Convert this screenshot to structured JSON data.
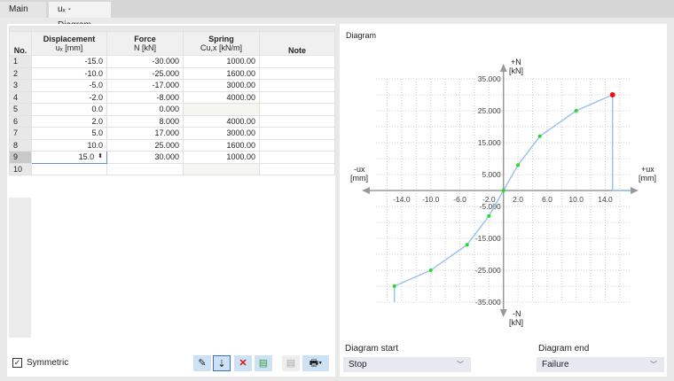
{
  "tabs": [
    {
      "label": "Main"
    },
    {
      "label": "uₓ - Diagram"
    }
  ],
  "table": {
    "headers": {
      "no": "No.",
      "disp1": "Displacement",
      "disp2": "uₓ [mm]",
      "force1": "Force",
      "force2": "N [kN]",
      "spring1": "Spring",
      "spring2": "Cu,x [kN/m]",
      "note": "Note"
    },
    "rows": [
      {
        "no": "1",
        "disp": "-15.0",
        "force": "-30.000",
        "spring": "1000.00",
        "note": ""
      },
      {
        "no": "2",
        "disp": "-10.0",
        "force": "-25.000",
        "spring": "1600.00",
        "note": ""
      },
      {
        "no": "3",
        "disp": "-5.0",
        "force": "-17.000",
        "spring": "3000.00",
        "note": ""
      },
      {
        "no": "4",
        "disp": "-2.0",
        "force": "-8.000",
        "spring": "4000.00",
        "note": ""
      },
      {
        "no": "5",
        "disp": "0.0",
        "force": "0.000",
        "spring": "",
        "note": ""
      },
      {
        "no": "6",
        "disp": "2.0",
        "force": "8.000",
        "spring": "4000.00",
        "note": ""
      },
      {
        "no": "7",
        "disp": "5.0",
        "force": "17.000",
        "spring": "3000.00",
        "note": ""
      },
      {
        "no": "8",
        "disp": "10.0",
        "force": "25.000",
        "spring": "1600.00",
        "note": ""
      },
      {
        "no": "9",
        "disp": "15.0",
        "force": "30.000",
        "spring": "1000.00",
        "note": ""
      },
      {
        "no": "10",
        "disp": "",
        "force": "",
        "spring": "",
        "note": ""
      }
    ]
  },
  "symmetric": {
    "label": "Symmetric",
    "checked": true
  },
  "toolbar": [
    {
      "icon": "edit-icon"
    },
    {
      "icon": "sort-icon"
    },
    {
      "icon": "delete-icon"
    },
    {
      "icon": "export-icon"
    },
    {
      "icon": "copy-icon"
    },
    {
      "icon": "print-icon"
    }
  ],
  "diagram": {
    "title": "Diagram",
    "pos_n": "+N",
    "neg_n": "-N",
    "unit_n": "[kN]",
    "pos_u": "+ux",
    "neg_u": "-ux",
    "unit_u": "[mm]",
    "start_label": "Diagram start",
    "start_value": "Stop",
    "end_label": "Diagram end",
    "end_value": "Failure"
  },
  "chart_data": {
    "type": "line",
    "x": [
      -15,
      -10,
      -5,
      -2,
      0,
      2,
      5,
      10,
      15
    ],
    "y": [
      -30,
      -25,
      -17,
      -8,
      0,
      8,
      17,
      25,
      30
    ],
    "xticks": [
      "-14.0",
      "-10.0",
      "-6.0",
      "-2.0",
      "2.0",
      "6.0",
      "10.0",
      "14.0"
    ],
    "yticks": [
      "35.000",
      "25.000",
      "15.000",
      "5.000",
      "-5.000",
      "-15.000",
      "-25.000",
      "-35.000"
    ],
    "xlim": [
      -17.5,
      17.5
    ],
    "ylim": [
      -35,
      35
    ],
    "grid": true,
    "line_color": "#9cc3ea",
    "point_color": "#22dd22",
    "end_point_color": "#ee1111"
  }
}
